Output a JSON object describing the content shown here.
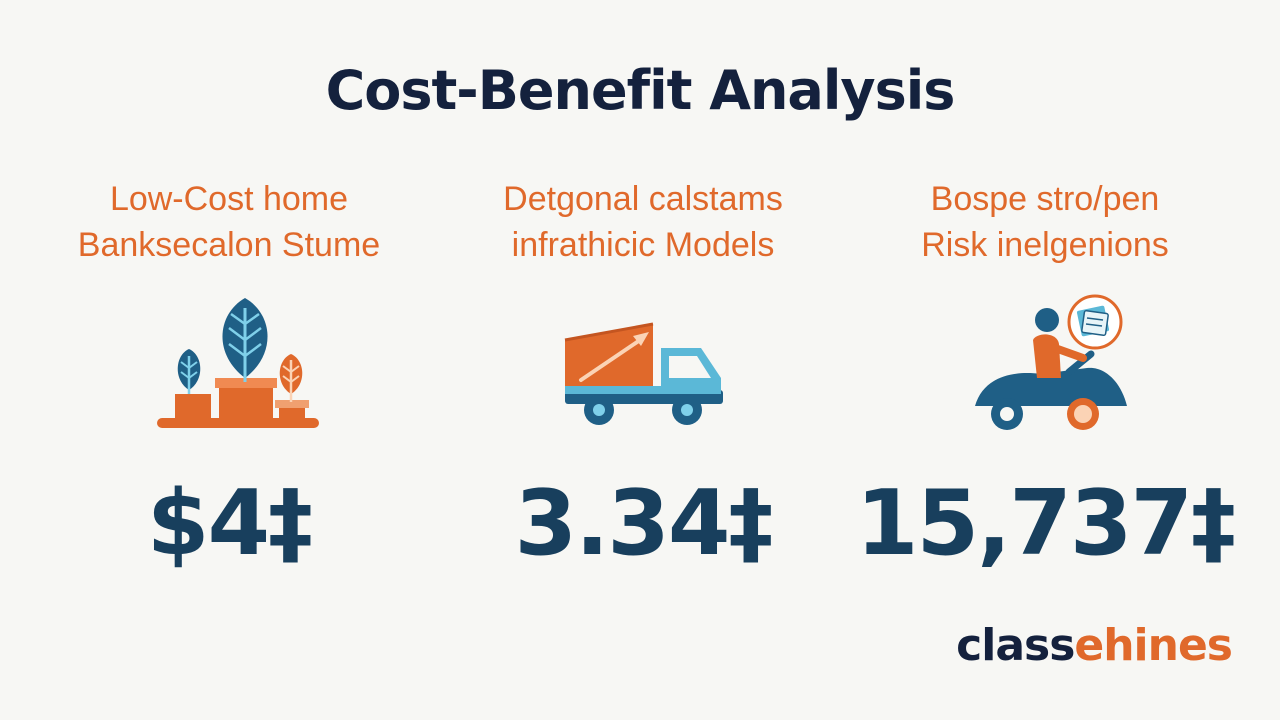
{
  "title": "Cost-Benefit Analysis",
  "columns": [
    {
      "heading_line1": "Low-Cost home",
      "heading_line2": "Banksecalon Stume",
      "icon": "plant-growth-icon",
      "value": "$4‡"
    },
    {
      "heading_line1": "Detgonal calstams",
      "heading_line2": "infrathicic Models",
      "icon": "truck-icon",
      "value": "3.34‡"
    },
    {
      "heading_line1": "Bospe stro/pen",
      "heading_line2": "Risk inelgenions",
      "icon": "rider-vehicle-icon",
      "value": "15,737‡"
    }
  ],
  "brand": {
    "part1": "class",
    "part2": "ehines"
  },
  "colors": {
    "background": "#f7f7f4",
    "title": "#14213d",
    "accent_orange": "#e0692b",
    "teal": "#1f5f86",
    "light_blue": "#5bb8d7",
    "value": "#183f5d"
  }
}
